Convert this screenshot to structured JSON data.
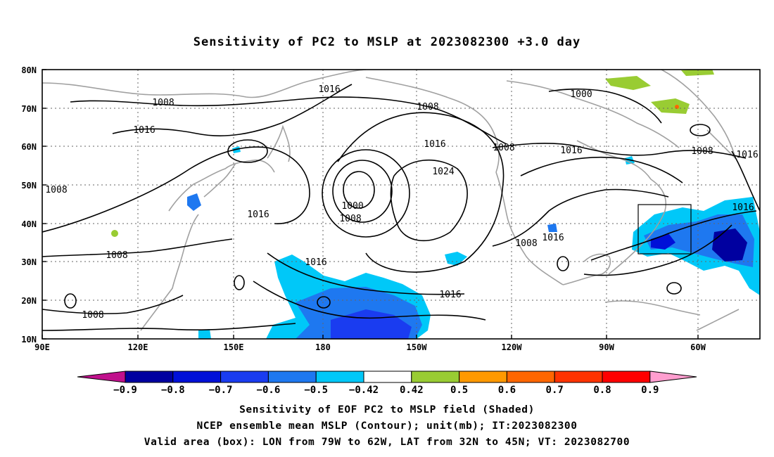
{
  "title": "Sensitivity of PC2 to MSLP at 2023082300 +3.0 day",
  "y_ticks": [
    "80N",
    "70N",
    "60N",
    "50N",
    "40N",
    "30N",
    "20N",
    "10N"
  ],
  "x_ticks": [
    "90E",
    "120E",
    "150E",
    "180",
    "150W",
    "120W",
    "90W",
    "60W"
  ],
  "contour_labels": {
    "c1": "1016",
    "c2": "1008",
    "c3": "1016",
    "c4": "1008",
    "c5": "1000",
    "c6": "1016",
    "c7": "1008",
    "c8": "1016",
    "c9": "1008",
    "c10": "1016",
    "c11": "1008",
    "c12": "1016",
    "c13": "1024",
    "c14": "1000",
    "c15": "1008",
    "c16": "1016",
    "c17": "1008",
    "c18": "1016",
    "c19": "1016",
    "c20": "1008",
    "c21": "1008",
    "c22": "1016",
    "c23": "1016",
    "c24": "1008"
  },
  "colorbar": {
    "labels": [
      "−0.9",
      "−0.8",
      "−0.7",
      "−0.6",
      "−0.5",
      "−0.42",
      "0.42",
      "0.5",
      "0.6",
      "0.7",
      "0.8",
      "0.9"
    ],
    "colors": [
      "#0000a0",
      "#0010d8",
      "#1a3cf0",
      "#1e78f0",
      "#00c8f8",
      "#ffffff",
      "#99cc33",
      "#ff9900",
      "#ff6600",
      "#ff3300",
      "#ff0000"
    ],
    "low_color": "#c0108c",
    "high_color": "#ff9ecf"
  },
  "valid_box": {
    "lon_range": "79W to 62W",
    "lat_range": "32N to 45N"
  },
  "captions": {
    "line1": "Sensitivity of EOF PC2 to MSLP field (Shaded)",
    "line2": "NCEP ensemble mean MSLP (Contour); unit(mb); IT:2023082300",
    "line3": "Valid area (box): LON from 79W to 62W, LAT from 32N to 45N; VT: 2023082700"
  }
}
